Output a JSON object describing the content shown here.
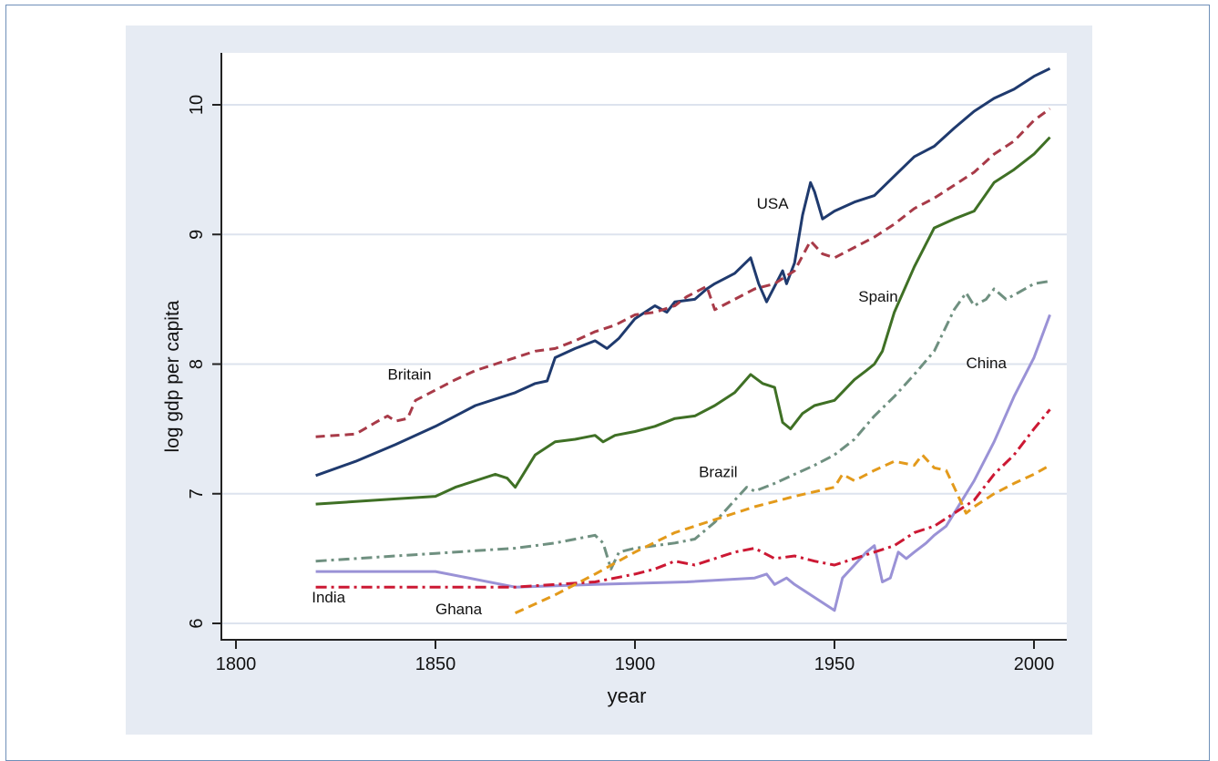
{
  "chart_data": {
    "type": "line",
    "xlabel": "year",
    "ylabel": "log gdp per capita",
    "xlim": [
      1800,
      2006
    ],
    "ylim": [
      5.95,
      10.4
    ],
    "x_ticks": [
      1800,
      1850,
      1900,
      1950,
      2000
    ],
    "y_ticks": [
      6,
      7,
      8,
      9,
      10
    ],
    "grid": "horizontal",
    "series": [
      {
        "name": "USA",
        "color": "#1f3a6e",
        "dash": "solid",
        "points": [
          [
            1820,
            7.14
          ],
          [
            1830,
            7.25
          ],
          [
            1840,
            7.38
          ],
          [
            1850,
            7.52
          ],
          [
            1860,
            7.68
          ],
          [
            1870,
            7.78
          ],
          [
            1875,
            7.85
          ],
          [
            1878,
            7.87
          ],
          [
            1880,
            8.05
          ],
          [
            1885,
            8.12
          ],
          [
            1890,
            8.18
          ],
          [
            1893,
            8.12
          ],
          [
            1896,
            8.2
          ],
          [
            1900,
            8.35
          ],
          [
            1905,
            8.45
          ],
          [
            1908,
            8.4
          ],
          [
            1910,
            8.48
          ],
          [
            1915,
            8.5
          ],
          [
            1918,
            8.58
          ],
          [
            1920,
            8.62
          ],
          [
            1925,
            8.7
          ],
          [
            1929,
            8.82
          ],
          [
            1931,
            8.62
          ],
          [
            1933,
            8.48
          ],
          [
            1935,
            8.6
          ],
          [
            1937,
            8.72
          ],
          [
            1938,
            8.62
          ],
          [
            1940,
            8.78
          ],
          [
            1942,
            9.15
          ],
          [
            1944,
            9.4
          ],
          [
            1945,
            9.33
          ],
          [
            1947,
            9.12
          ],
          [
            1950,
            9.18
          ],
          [
            1955,
            9.25
          ],
          [
            1960,
            9.3
          ],
          [
            1965,
            9.45
          ],
          [
            1970,
            9.6
          ],
          [
            1975,
            9.68
          ],
          [
            1980,
            9.82
          ],
          [
            1985,
            9.95
          ],
          [
            1990,
            10.05
          ],
          [
            1995,
            10.12
          ],
          [
            2000,
            10.22
          ],
          [
            2004,
            10.28
          ]
        ]
      },
      {
        "name": "Britain",
        "color": "#a83a48",
        "dash": "dashed",
        "points": [
          [
            1820,
            7.44
          ],
          [
            1830,
            7.46
          ],
          [
            1835,
            7.55
          ],
          [
            1838,
            7.6
          ],
          [
            1840,
            7.56
          ],
          [
            1843,
            7.58
          ],
          [
            1845,
            7.72
          ],
          [
            1850,
            7.8
          ],
          [
            1855,
            7.88
          ],
          [
            1860,
            7.95
          ],
          [
            1865,
            8.0
          ],
          [
            1870,
            8.05
          ],
          [
            1875,
            8.1
          ],
          [
            1880,
            8.12
          ],
          [
            1885,
            8.18
          ],
          [
            1890,
            8.25
          ],
          [
            1895,
            8.3
          ],
          [
            1900,
            8.38
          ],
          [
            1905,
            8.4
          ],
          [
            1910,
            8.45
          ],
          [
            1913,
            8.52
          ],
          [
            1918,
            8.6
          ],
          [
            1920,
            8.42
          ],
          [
            1925,
            8.5
          ],
          [
            1930,
            8.58
          ],
          [
            1935,
            8.62
          ],
          [
            1940,
            8.72
          ],
          [
            1944,
            8.95
          ],
          [
            1947,
            8.85
          ],
          [
            1950,
            8.82
          ],
          [
            1955,
            8.9
          ],
          [
            1960,
            8.98
          ],
          [
            1965,
            9.08
          ],
          [
            1970,
            9.2
          ],
          [
            1975,
            9.28
          ],
          [
            1980,
            9.38
          ],
          [
            1985,
            9.48
          ],
          [
            1990,
            9.62
          ],
          [
            1995,
            9.72
          ],
          [
            2000,
            9.88
          ],
          [
            2004,
            9.97
          ]
        ]
      },
      {
        "name": "Spain",
        "color": "#3f7025",
        "dash": "solid",
        "points": [
          [
            1820,
            6.92
          ],
          [
            1830,
            6.94
          ],
          [
            1840,
            6.96
          ],
          [
            1850,
            6.98
          ],
          [
            1855,
            7.05
          ],
          [
            1860,
            7.1
          ],
          [
            1865,
            7.15
          ],
          [
            1868,
            7.12
          ],
          [
            1870,
            7.05
          ],
          [
            1873,
            7.2
          ],
          [
            1875,
            7.3
          ],
          [
            1880,
            7.4
          ],
          [
            1885,
            7.42
          ],
          [
            1890,
            7.45
          ],
          [
            1892,
            7.4
          ],
          [
            1895,
            7.45
          ],
          [
            1900,
            7.48
          ],
          [
            1905,
            7.52
          ],
          [
            1910,
            7.58
          ],
          [
            1915,
            7.6
          ],
          [
            1920,
            7.68
          ],
          [
            1925,
            7.78
          ],
          [
            1929,
            7.92
          ],
          [
            1932,
            7.85
          ],
          [
            1935,
            7.82
          ],
          [
            1937,
            7.55
          ],
          [
            1939,
            7.5
          ],
          [
            1942,
            7.62
          ],
          [
            1945,
            7.68
          ],
          [
            1950,
            7.72
          ],
          [
            1955,
            7.88
          ],
          [
            1958,
            7.95
          ],
          [
            1960,
            8.0
          ],
          [
            1962,
            8.1
          ],
          [
            1965,
            8.4
          ],
          [
            1970,
            8.75
          ],
          [
            1975,
            9.05
          ],
          [
            1980,
            9.12
          ],
          [
            1985,
            9.18
          ],
          [
            1990,
            9.4
          ],
          [
            1995,
            9.5
          ],
          [
            2000,
            9.62
          ],
          [
            2004,
            9.75
          ]
        ]
      },
      {
        "name": "Brazil",
        "color": "#6f9080",
        "dash": "dashdot",
        "points": [
          [
            1820,
            6.48
          ],
          [
            1830,
            6.5
          ],
          [
            1840,
            6.52
          ],
          [
            1850,
            6.54
          ],
          [
            1860,
            6.56
          ],
          [
            1870,
            6.58
          ],
          [
            1880,
            6.62
          ],
          [
            1890,
            6.68
          ],
          [
            1892,
            6.62
          ],
          [
            1894,
            6.42
          ],
          [
            1896,
            6.55
          ],
          [
            1900,
            6.58
          ],
          [
            1905,
            6.6
          ],
          [
            1910,
            6.62
          ],
          [
            1915,
            6.65
          ],
          [
            1920,
            6.78
          ],
          [
            1925,
            6.95
          ],
          [
            1928,
            7.05
          ],
          [
            1930,
            7.02
          ],
          [
            1935,
            7.08
          ],
          [
            1940,
            7.15
          ],
          [
            1945,
            7.22
          ],
          [
            1950,
            7.3
          ],
          [
            1955,
            7.42
          ],
          [
            1960,
            7.6
          ],
          [
            1965,
            7.75
          ],
          [
            1970,
            7.92
          ],
          [
            1975,
            8.1
          ],
          [
            1980,
            8.42
          ],
          [
            1983,
            8.55
          ],
          [
            1985,
            8.45
          ],
          [
            1988,
            8.5
          ],
          [
            1990,
            8.58
          ],
          [
            1993,
            8.5
          ],
          [
            1996,
            8.55
          ],
          [
            2000,
            8.62
          ],
          [
            2004,
            8.64
          ]
        ]
      },
      {
        "name": "China",
        "color": "#9a92d6",
        "dash": "solid",
        "points": [
          [
            1820,
            6.4
          ],
          [
            1850,
            6.4
          ],
          [
            1870,
            6.28
          ],
          [
            1890,
            6.3
          ],
          [
            1913,
            6.32
          ],
          [
            1930,
            6.35
          ],
          [
            1933,
            6.38
          ],
          [
            1935,
            6.3
          ],
          [
            1938,
            6.35
          ],
          [
            1940,
            6.3
          ],
          [
            1945,
            6.2
          ],
          [
            1950,
            6.1
          ],
          [
            1952,
            6.35
          ],
          [
            1955,
            6.45
          ],
          [
            1958,
            6.55
          ],
          [
            1960,
            6.6
          ],
          [
            1962,
            6.32
          ],
          [
            1964,
            6.35
          ],
          [
            1966,
            6.55
          ],
          [
            1968,
            6.5
          ],
          [
            1970,
            6.55
          ],
          [
            1973,
            6.62
          ],
          [
            1975,
            6.68
          ],
          [
            1978,
            6.75
          ],
          [
            1980,
            6.85
          ],
          [
            1985,
            7.1
          ],
          [
            1990,
            7.4
          ],
          [
            1995,
            7.75
          ],
          [
            2000,
            8.05
          ],
          [
            2004,
            8.38
          ]
        ]
      },
      {
        "name": "India",
        "color": "#cc1833",
        "dash": "dashdot",
        "points": [
          [
            1820,
            6.28
          ],
          [
            1870,
            6.28
          ],
          [
            1880,
            6.3
          ],
          [
            1890,
            6.32
          ],
          [
            1900,
            6.38
          ],
          [
            1905,
            6.42
          ],
          [
            1910,
            6.48
          ],
          [
            1915,
            6.45
          ],
          [
            1920,
            6.5
          ],
          [
            1925,
            6.55
          ],
          [
            1930,
            6.58
          ],
          [
            1935,
            6.5
          ],
          [
            1940,
            6.52
          ],
          [
            1945,
            6.48
          ],
          [
            1950,
            6.45
          ],
          [
            1955,
            6.5
          ],
          [
            1960,
            6.55
          ],
          [
            1965,
            6.6
          ],
          [
            1970,
            6.7
          ],
          [
            1975,
            6.75
          ],
          [
            1980,
            6.85
          ],
          [
            1985,
            6.95
          ],
          [
            1990,
            7.15
          ],
          [
            1995,
            7.3
          ],
          [
            2000,
            7.5
          ],
          [
            2004,
            7.65
          ]
        ]
      },
      {
        "name": "Ghana",
        "color": "#e39a1b",
        "dash": "dashed",
        "points": [
          [
            1870,
            6.08
          ],
          [
            1880,
            6.22
          ],
          [
            1890,
            6.38
          ],
          [
            1900,
            6.55
          ],
          [
            1910,
            6.7
          ],
          [
            1920,
            6.8
          ],
          [
            1930,
            6.9
          ],
          [
            1940,
            6.98
          ],
          [
            1950,
            7.05
          ],
          [
            1952,
            7.15
          ],
          [
            1955,
            7.1
          ],
          [
            1960,
            7.18
          ],
          [
            1965,
            7.25
          ],
          [
            1970,
            7.22
          ],
          [
            1972,
            7.3
          ],
          [
            1975,
            7.2
          ],
          [
            1978,
            7.18
          ],
          [
            1980,
            7.05
          ],
          [
            1983,
            6.85
          ],
          [
            1985,
            6.9
          ],
          [
            1990,
            7.0
          ],
          [
            1995,
            7.08
          ],
          [
            2000,
            7.15
          ],
          [
            2004,
            7.22
          ]
        ]
      }
    ],
    "labels": [
      {
        "text": "USA",
        "x": 1938.5,
        "y": 9.2,
        "anchor": "end"
      },
      {
        "text": "Britain",
        "x": 1838,
        "y": 7.88,
        "anchor": "start"
      },
      {
        "text": "Spain",
        "x": 1956,
        "y": 8.48,
        "anchor": "start"
      },
      {
        "text": "China",
        "x": 1983,
        "y": 7.97,
        "anchor": "start"
      },
      {
        "text": "Brazil",
        "x": 1916,
        "y": 7.13,
        "anchor": "start"
      },
      {
        "text": "India",
        "x": 1819,
        "y": 6.16,
        "anchor": "start"
      },
      {
        "text": "Ghana",
        "x": 1850,
        "y": 6.07,
        "anchor": "start"
      }
    ]
  }
}
